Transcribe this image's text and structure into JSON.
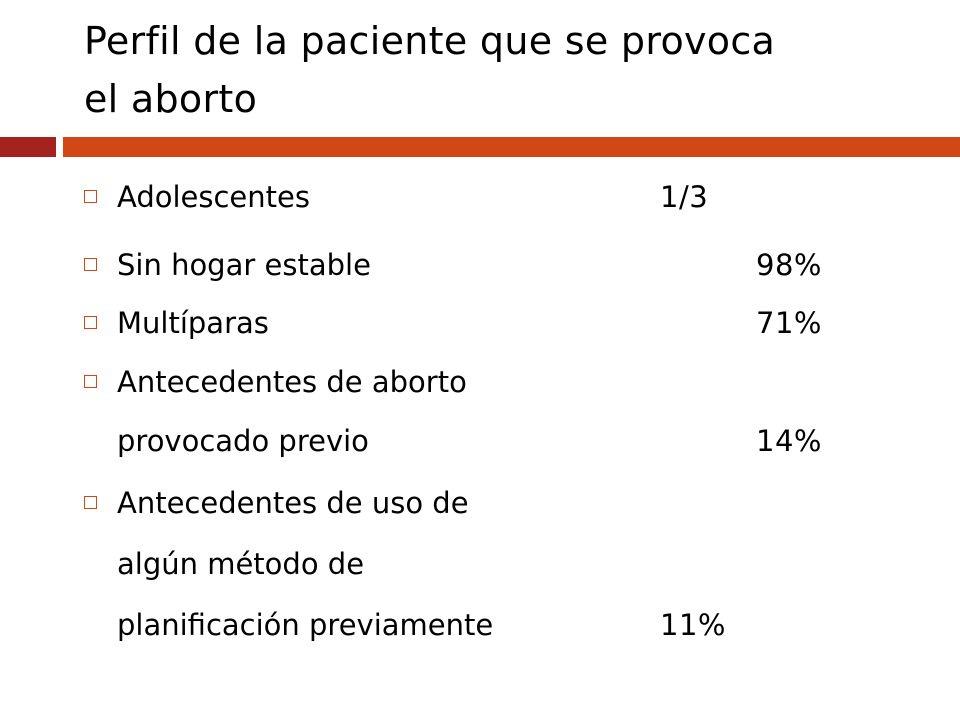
{
  "slide": {
    "title_line1": "Perfil de la paciente que se provoca",
    "title_line2": "el aborto"
  },
  "colors": {
    "accent_dark": "#A5231F",
    "accent_main": "#D24716",
    "bullet_square": "#D24716",
    "text": "#000000"
  },
  "bullets": [
    {
      "lines": [
        "Adolescentes"
      ],
      "value": "1/3"
    },
    {
      "lines": [
        "Sin hogar estable"
      ],
      "value": "98%"
    },
    {
      "lines": [
        "Multíparas"
      ],
      "value": "71%"
    },
    {
      "lines": [
        "Antecedentes de aborto",
        "provocado previo"
      ],
      "value": "14%"
    },
    {
      "lines": [
        "Antecedentes de uso de",
        "algún método de",
        "planificación previamente"
      ],
      "value": "11%"
    }
  ]
}
